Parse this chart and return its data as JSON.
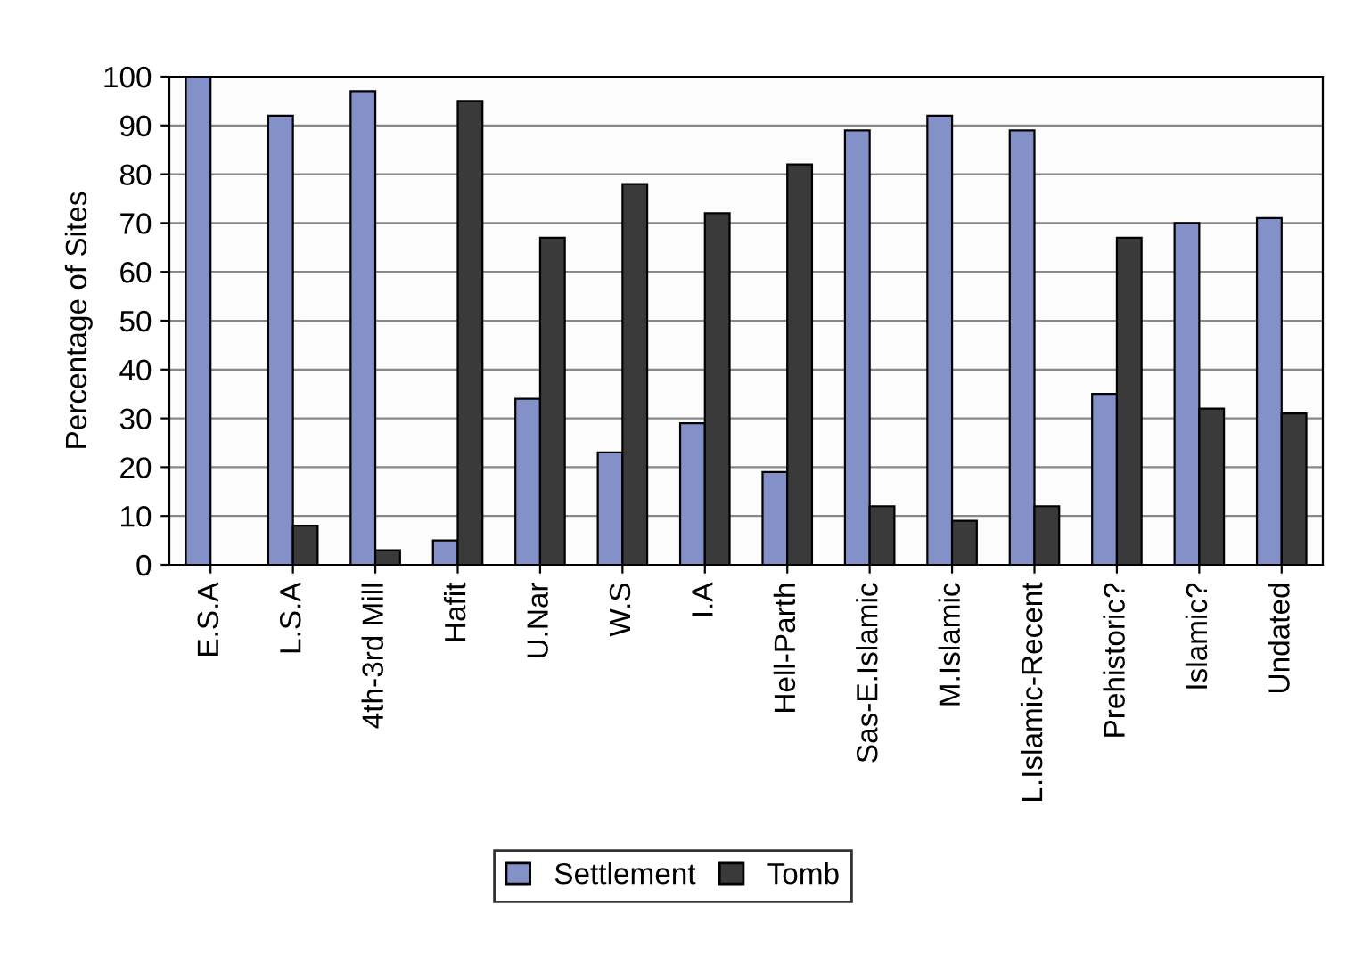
{
  "chart_data": {
    "type": "bar",
    "ylabel": "Percentage of Sites",
    "categories": [
      "E.S.A",
      "L.S.A",
      "4th-3rd Mill",
      "Hafit",
      "U.Nar",
      "W.S",
      "I.A",
      "Hell-Parth",
      "Sas-E.Islamic",
      "M.Islamic",
      "L.Islamic-Recent",
      "Prehistoric?",
      "Islamic?",
      "Undated"
    ],
    "series": [
      {
        "name": "Settlement",
        "color": "#8490c8",
        "values": [
          100,
          92,
          97,
          5,
          34,
          23,
          29,
          19,
          89,
          92,
          89,
          35,
          70,
          71
        ]
      },
      {
        "name": "Tomb",
        "color": "#3a3a3a",
        "values": [
          null,
          8,
          3,
          95,
          67,
          78,
          72,
          82,
          12,
          9,
          12,
          67,
          32,
          31
        ]
      }
    ],
    "ylim": [
      0,
      100
    ],
    "yticks": [
      0,
      10,
      20,
      30,
      40,
      50,
      60,
      70,
      80,
      90,
      100
    ],
    "grid": "y",
    "legend": "bottom"
  }
}
